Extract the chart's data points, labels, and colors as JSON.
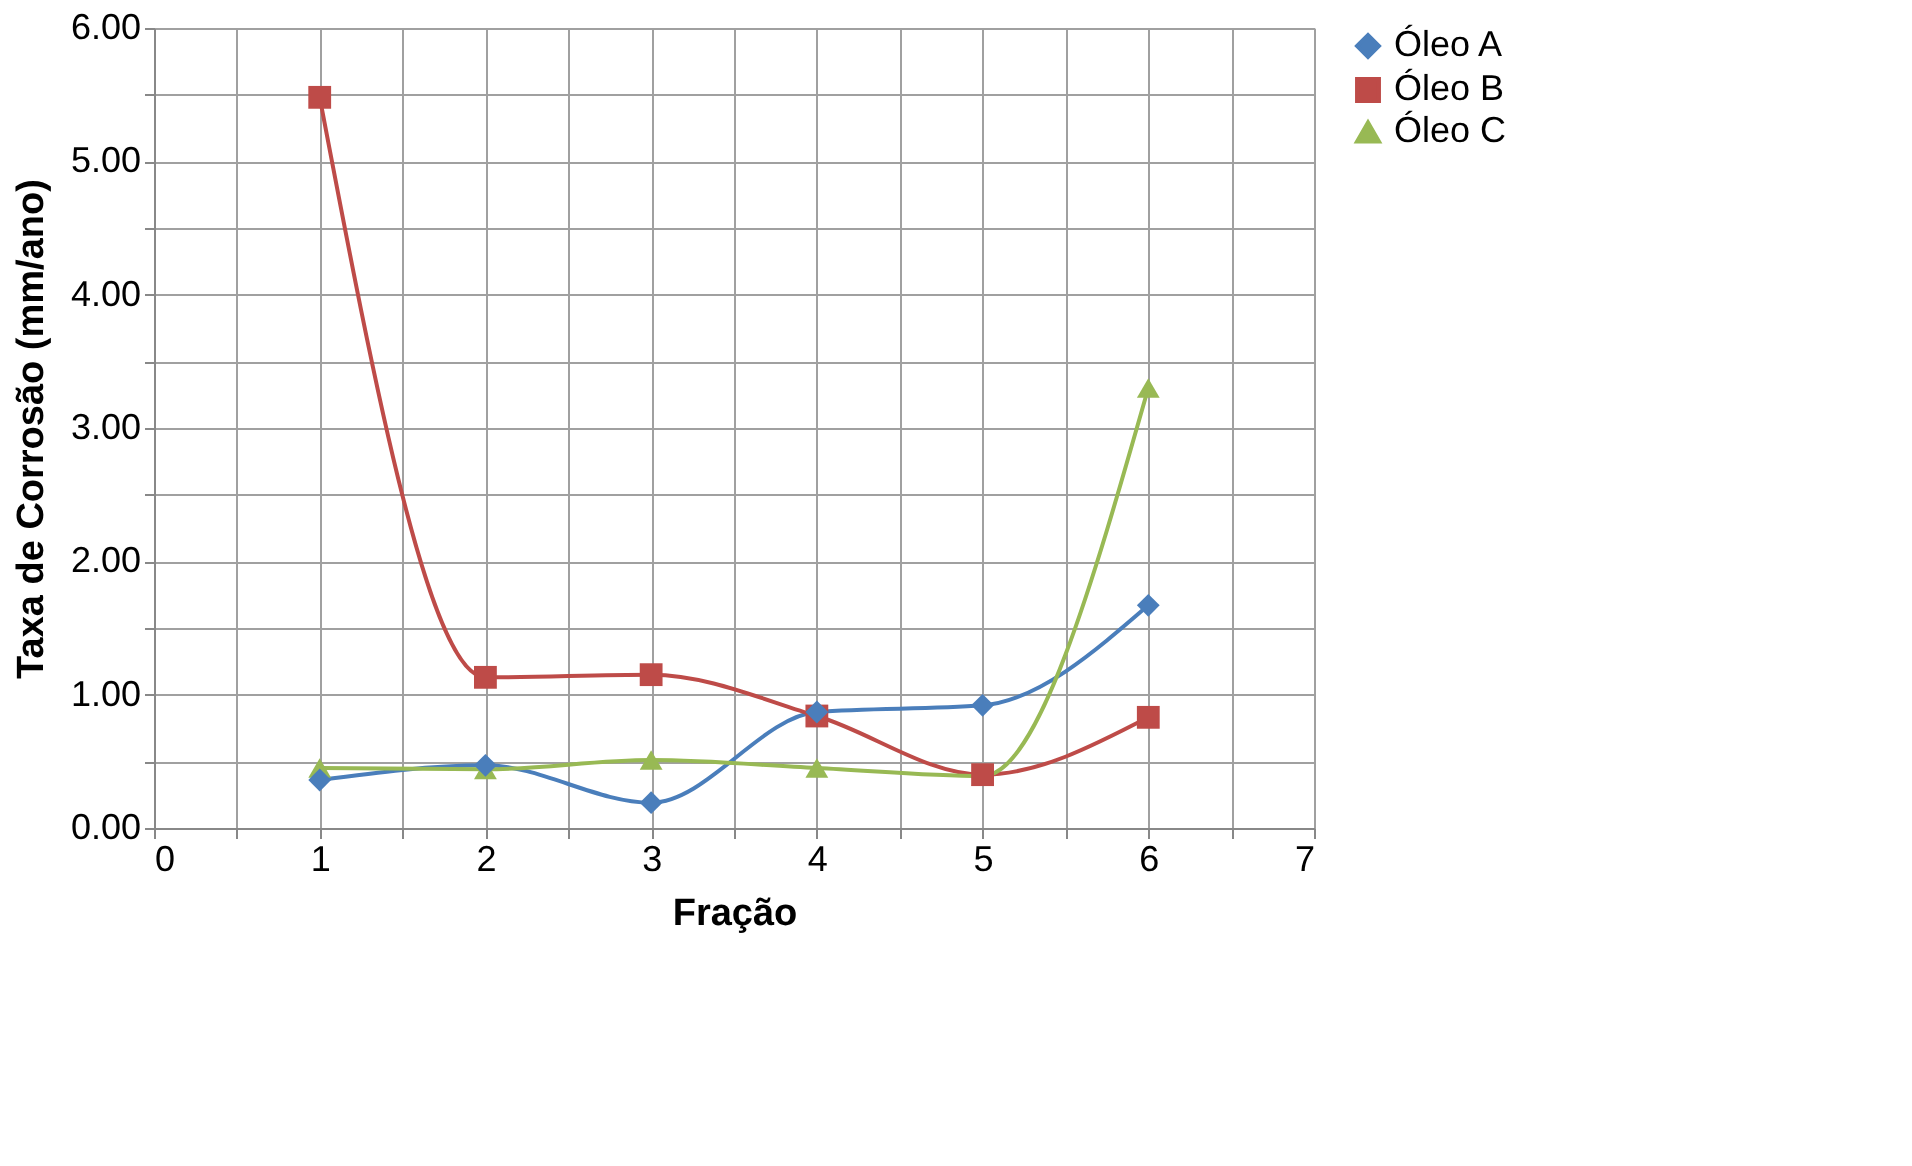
{
  "chart_data": {
    "type": "line",
    "xlabel": "Fração",
    "ylabel": "Taxa de Corrosão (mm/ano)",
    "x": [
      1,
      2,
      3,
      4,
      5,
      6
    ],
    "series": [
      {
        "name": "Óleo A",
        "color": "#4a7ebb",
        "marker": "diamond",
        "values": [
          0.36,
          0.47,
          0.19,
          0.87,
          0.92,
          1.67
        ]
      },
      {
        "name": "Óleo B",
        "color": "#be4b48",
        "marker": "square",
        "values": [
          5.48,
          1.13,
          1.15,
          0.84,
          0.4,
          0.83
        ]
      },
      {
        "name": "Óleo C",
        "color": "#98b954",
        "marker": "triangle",
        "values": [
          0.45,
          0.44,
          0.51,
          0.45,
          0.39,
          3.3
        ]
      }
    ],
    "xlim": [
      0,
      7
    ],
    "xticks": [
      0,
      {
        "value": 0.5,
        "label": null
      },
      1,
      {
        "value": 1.5,
        "label": null
      },
      2,
      {
        "value": 2.5,
        "label": null
      },
      3,
      {
        "value": 3.5,
        "label": null
      },
      4,
      {
        "value": 4.5,
        "label": null
      },
      5,
      {
        "value": 5.5,
        "label": null
      },
      6,
      {
        "value": 6.5,
        "label": null
      },
      7
    ],
    "ylim": [
      0,
      6
    ],
    "yticks": [
      {
        "value": 0,
        "label": "0.00"
      },
      {
        "value": 0.5,
        "label": null
      },
      {
        "value": 1,
        "label": "1.00"
      },
      {
        "value": 1.5,
        "label": null
      },
      {
        "value": 2,
        "label": "2.00"
      },
      {
        "value": 2.5,
        "label": null
      },
      {
        "value": 3,
        "label": "3.00"
      },
      {
        "value": 3.5,
        "label": null
      },
      {
        "value": 4,
        "label": "4.00"
      },
      {
        "value": 4.5,
        "label": null
      },
      {
        "value": 5,
        "label": "5.00"
      },
      {
        "value": 5.5,
        "label": null
      },
      {
        "value": 6,
        "label": "6.00"
      }
    ],
    "grid": true,
    "legend": "right",
    "line_style": "solid"
  }
}
